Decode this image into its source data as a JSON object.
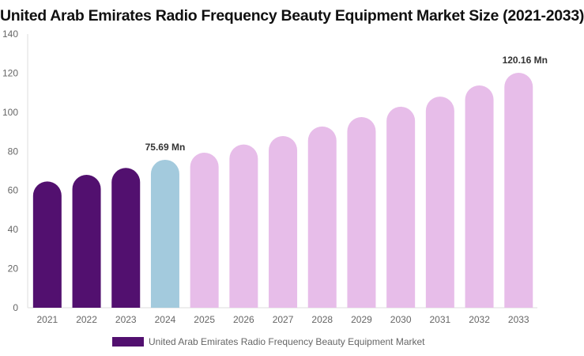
{
  "chart_data": {
    "type": "bar",
    "title": "United Arab Emirates Radio Frequency Beauty Equipment Market Size (2021-2033)",
    "categories": [
      "2021",
      "2022",
      "2023",
      "2024",
      "2025",
      "2026",
      "2027",
      "2028",
      "2029",
      "2030",
      "2031",
      "2032",
      "2033"
    ],
    "series": [
      {
        "name": "United Arab Emirates Radio Frequency Beauty Equipment Market",
        "values": [
          64.6,
          68.0,
          71.5,
          75.69,
          79.3,
          83.5,
          87.8,
          92.7,
          97.5,
          102.8,
          108.0,
          113.7,
          120.16
        ]
      }
    ],
    "data_labels": {
      "3": "75.69 Mn",
      "12": "120.16 Mn"
    },
    "ylim": [
      0,
      140
    ],
    "yticks": [
      0,
      20,
      40,
      60,
      80,
      100,
      120,
      140
    ],
    "grid": false,
    "legend_position": "bottom",
    "colors": {
      "historical": "#52106f",
      "base_year": "#a3cadd",
      "forecast": "#e7bde9"
    }
  }
}
